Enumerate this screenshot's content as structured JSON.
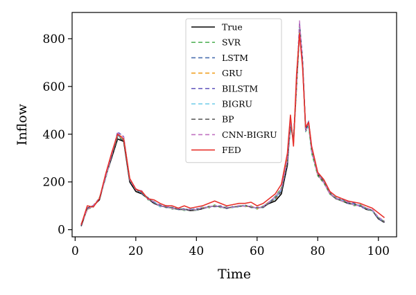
{
  "chart_data": {
    "type": "line",
    "title": "",
    "xlabel": "Time",
    "ylabel": "Inflow",
    "xlim": [
      -1,
      106
    ],
    "ylim": [
      -30,
      910
    ],
    "xticks": [
      0,
      20,
      40,
      60,
      80,
      100
    ],
    "yticks": [
      0,
      200,
      400,
      600,
      800
    ],
    "grid": false,
    "legend_position": "top-center",
    "x": [
      2,
      4,
      6,
      8,
      10,
      12,
      14,
      16,
      18,
      20,
      22,
      24,
      26,
      28,
      30,
      32,
      34,
      36,
      38,
      40,
      42,
      44,
      46,
      48,
      50,
      52,
      54,
      56,
      58,
      60,
      62,
      64,
      66,
      68,
      70,
      71,
      72,
      73,
      74,
      75,
      76,
      77,
      78,
      80,
      82,
      84,
      86,
      88,
      90,
      92,
      94,
      96,
      98,
      100,
      102
    ],
    "series": [
      {
        "name": "True",
        "color": "#000000",
        "dash": "solid",
        "values": [
          15,
          90,
          100,
          125,
          220,
          300,
          380,
          370,
          200,
          160,
          150,
          130,
          110,
          100,
          95,
          90,
          85,
          85,
          80,
          82,
          88,
          95,
          100,
          95,
          90,
          95,
          98,
          100,
          95,
          90,
          95,
          110,
          120,
          150,
          270,
          450,
          370,
          600,
          830,
          700,
          420,
          440,
          330,
          230,
          200,
          150,
          130,
          120,
          110,
          105,
          100,
          85,
          80,
          45,
          30
        ]
      },
      {
        "name": "SVR",
        "color": "#55b35a",
        "dash": "dashed",
        "values": [
          22,
          85,
          95,
          135,
          210,
          310,
          390,
          375,
          210,
          168,
          158,
          125,
          118,
          96,
          100,
          86,
          90,
          80,
          86,
          80,
          94,
          90,
          104,
          92,
          96,
          91,
          102,
          96,
          100,
          86,
          100,
          115,
          140,
          175,
          290,
          420,
          390,
          610,
          850,
          690,
          410,
          430,
          320,
          225,
          195,
          148,
          135,
          118,
          115,
          100,
          105,
          90,
          78,
          50,
          35
        ]
      },
      {
        "name": "LSTM",
        "color": "#4a6fb0",
        "dash": "dashed",
        "values": [
          20,
          88,
          98,
          128,
          225,
          305,
          395,
          380,
          205,
          170,
          150,
          135,
          112,
          102,
          92,
          94,
          84,
          88,
          82,
          86,
          90,
          98,
          96,
          98,
          88,
          97,
          95,
          104,
          92,
          94,
          92,
          112,
          130,
          160,
          280,
          430,
          380,
          620,
          860,
          710,
          420,
          450,
          340,
          235,
          205,
          155,
          128,
          125,
          112,
          110,
          98,
          88,
          82,
          48,
          32
        ]
      },
      {
        "name": "GRU",
        "color": "#f0a020",
        "dash": "dashed",
        "values": [
          25,
          82,
          102,
          132,
          215,
          315,
          400,
          385,
          215,
          165,
          162,
          128,
          116,
          98,
          98,
          88,
          88,
          84,
          84,
          84,
          92,
          94,
          100,
          96,
          92,
          93,
          100,
          98,
          98,
          88,
          98,
          118,
          125,
          170,
          300,
          460,
          360,
          590,
          840,
          700,
          415,
          440,
          335,
          228,
          198,
          150,
          132,
          120,
          116,
          102,
          102,
          92,
          80,
          52,
          34
        ]
      },
      {
        "name": "BILSTM",
        "color": "#6a5fc0",
        "dash": "dashed",
        "values": [
          18,
          92,
          96,
          130,
          218,
          308,
          410,
          390,
          212,
          172,
          155,
          132,
          114,
          104,
          94,
          92,
          86,
          86,
          84,
          88,
          88,
          96,
          98,
          100,
          90,
          95,
          97,
          102,
          94,
          92,
          96,
          114,
          135,
          165,
          285,
          440,
          375,
          615,
          870,
          720,
          425,
          455,
          345,
          240,
          210,
          158,
          130,
          128,
          110,
          112,
          96,
          86,
          84,
          46,
          31
        ]
      },
      {
        "name": "BIGRU",
        "color": "#6ccbe8",
        "dash": "dashed",
        "values": [
          24,
          86,
          100,
          134,
          212,
          312,
          398,
          382,
          208,
          166,
          160,
          126,
          120,
          95,
          102,
          87,
          92,
          82,
          88,
          82,
          96,
          92,
          102,
          94,
          94,
          92,
          99,
          100,
          98,
          87,
          99,
          116,
          128,
          168,
          295,
          445,
          365,
          600,
          845,
          695,
          412,
          435,
          325,
          232,
          200,
          152,
          134,
          122,
          118,
          104,
          104,
          89,
          79,
          51,
          33
        ]
      },
      {
        "name": "BP",
        "color": "#606060",
        "dash": "dashed",
        "values": [
          21,
          89,
          97,
          129,
          222,
          306,
          385,
          375,
          206,
          169,
          152,
          133,
          111,
          101,
          93,
          93,
          85,
          87,
          81,
          85,
          89,
          97,
          97,
          97,
          89,
          96,
          96,
          103,
          93,
          93,
          93,
          111,
          132,
          158,
          282,
          435,
          372,
          612,
          855,
          705,
          418,
          448,
          338,
          236,
          202,
          154,
          129,
          124,
          113,
          108,
          99,
          87,
          81,
          47,
          32
        ]
      },
      {
        "name": "CNN-BIGRU",
        "color": "#c070c0",
        "dash": "dashed",
        "values": [
          23,
          84,
          103,
          131,
          216,
          311,
          405,
          388,
          210,
          167,
          163,
          127,
          117,
          97,
          99,
          89,
          89,
          83,
          85,
          83,
          93,
          93,
          101,
          95,
          93,
          94,
          101,
          97,
          99,
          89,
          97,
          117,
          138,
          172,
          292,
          455,
          362,
          605,
          875,
          698,
          414,
          442,
          330,
          230,
          197,
          149,
          133,
          119,
          117,
          101,
          103,
          91,
          83,
          53,
          36
        ]
      },
      {
        "name": "FED",
        "color": "#e8302a",
        "dash": "solid",
        "values": [
          20,
          100,
          95,
          130,
          230,
          320,
          400,
          380,
          215,
          170,
          160,
          130,
          125,
          110,
          100,
          100,
          90,
          100,
          90,
          95,
          100,
          110,
          120,
          110,
          100,
          105,
          110,
          110,
          115,
          100,
          110,
          130,
          150,
          190,
          320,
          480,
          350,
          650,
          820,
          680,
          430,
          450,
          350,
          240,
          210,
          160,
          140,
          130,
          120,
          115,
          110,
          100,
          90,
          70,
          50
        ]
      }
    ]
  }
}
